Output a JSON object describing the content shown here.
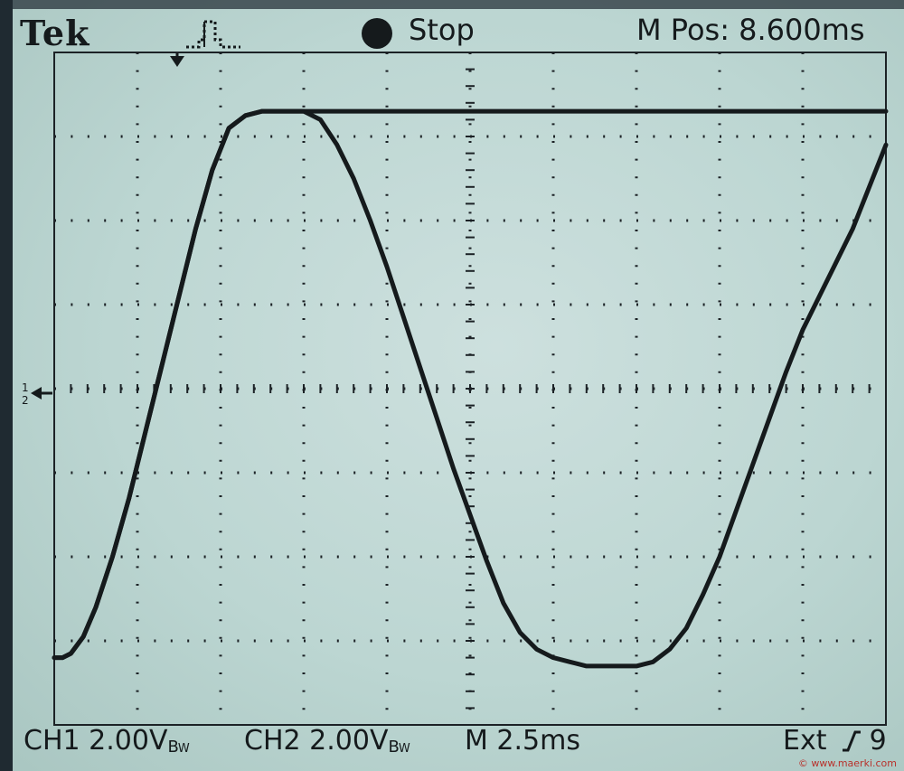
{
  "header": {
    "brand": "Tek",
    "trigger_icon": "trigger-pulse-icon",
    "run_state_icon": "stop-dot-icon",
    "run_state": "Stop",
    "main_position": "M Pos: 8.600ms"
  },
  "footer": {
    "ch1_label": "CH1",
    "ch1_scale": "2.00V",
    "ch1_bw": "B",
    "ch1_bw_sub": "W",
    "ch2_label": "CH2",
    "ch2_scale": "2.00V",
    "ch2_bw": "B",
    "ch2_bw_sub": "W",
    "timebase": "M 2.5ms",
    "trigger_source": "Ext",
    "trigger_slope_icon": "rising-slope-icon",
    "trigger_level_partial": "9",
    "watermark": "© www.maerki.com"
  },
  "colors": {
    "screen": "#bcd6d2",
    "trace": "#151a1c",
    "bezel": "#1f2a31",
    "watermark": "#b8322c"
  },
  "chart_data": {
    "type": "line",
    "title": "",
    "xlabel": "",
    "ylabel": "",
    "grid": true,
    "x_divisions": 10,
    "y_divisions": 8,
    "time_per_div_ms": 2.5,
    "volts_per_div": 2.0,
    "xlim_div": [
      0,
      10
    ],
    "ylim_div": [
      -4,
      4
    ],
    "series": [
      {
        "x_div": [
          0.0,
          0.1,
          0.2,
          0.35,
          0.5,
          0.7,
          0.9,
          1.1,
          1.3,
          1.5,
          1.7,
          1.9,
          2.1,
          2.3,
          2.5,
          2.7,
          2.85,
          3.0,
          3.2,
          3.4,
          3.6,
          3.8,
          4.0,
          4.5,
          5.0,
          5.5,
          6.0,
          7.0,
          8.0,
          9.0,
          10.0
        ],
        "y_div": [
          -3.2,
          -3.2,
          -3.15,
          -2.95,
          -2.6,
          -2.0,
          -1.3,
          -0.5,
          0.3,
          1.1,
          1.9,
          2.6,
          3.1,
          3.25,
          3.3,
          3.3,
          3.3,
          3.3,
          3.3,
          3.3,
          3.3,
          3.3,
          3.3,
          3.3,
          3.3,
          3.3,
          3.3,
          3.3,
          3.3,
          3.3,
          3.3
        ]
      },
      {
        "x_div": [
          0.0,
          0.1,
          0.2,
          0.35,
          0.5,
          0.7,
          0.9,
          1.1,
          1.3,
          1.5,
          1.7,
          1.9,
          2.1,
          2.3,
          2.5,
          2.7,
          2.85,
          3.0,
          3.2,
          3.4,
          3.6,
          3.8,
          4.0,
          4.2,
          4.4,
          4.6,
          4.8,
          5.0,
          5.2,
          5.4,
          5.6,
          5.8,
          6.0,
          6.2,
          6.4,
          6.6,
          6.8,
          7.0,
          7.2,
          7.4,
          7.6,
          7.8,
          8.0,
          8.2,
          8.4,
          8.6,
          8.8,
          9.0,
          9.2,
          9.4,
          9.6,
          9.8,
          10.0
        ],
        "y_div": [
          -3.2,
          -3.2,
          -3.15,
          -2.95,
          -2.6,
          -2.0,
          -1.3,
          -0.5,
          0.3,
          1.1,
          1.9,
          2.6,
          3.1,
          3.25,
          3.3,
          3.3,
          3.3,
          3.3,
          3.2,
          2.9,
          2.5,
          2.0,
          1.45,
          0.85,
          0.25,
          -0.35,
          -0.95,
          -1.5,
          -2.05,
          -2.55,
          -2.9,
          -3.1,
          -3.2,
          -3.25,
          -3.3,
          -3.3,
          -3.3,
          -3.3,
          -3.25,
          -3.1,
          -2.85,
          -2.45,
          -2.0,
          -1.45,
          -0.9,
          -0.35,
          0.2,
          0.7,
          1.1,
          1.5,
          1.9,
          2.4,
          2.9
        ]
      }
    ]
  }
}
